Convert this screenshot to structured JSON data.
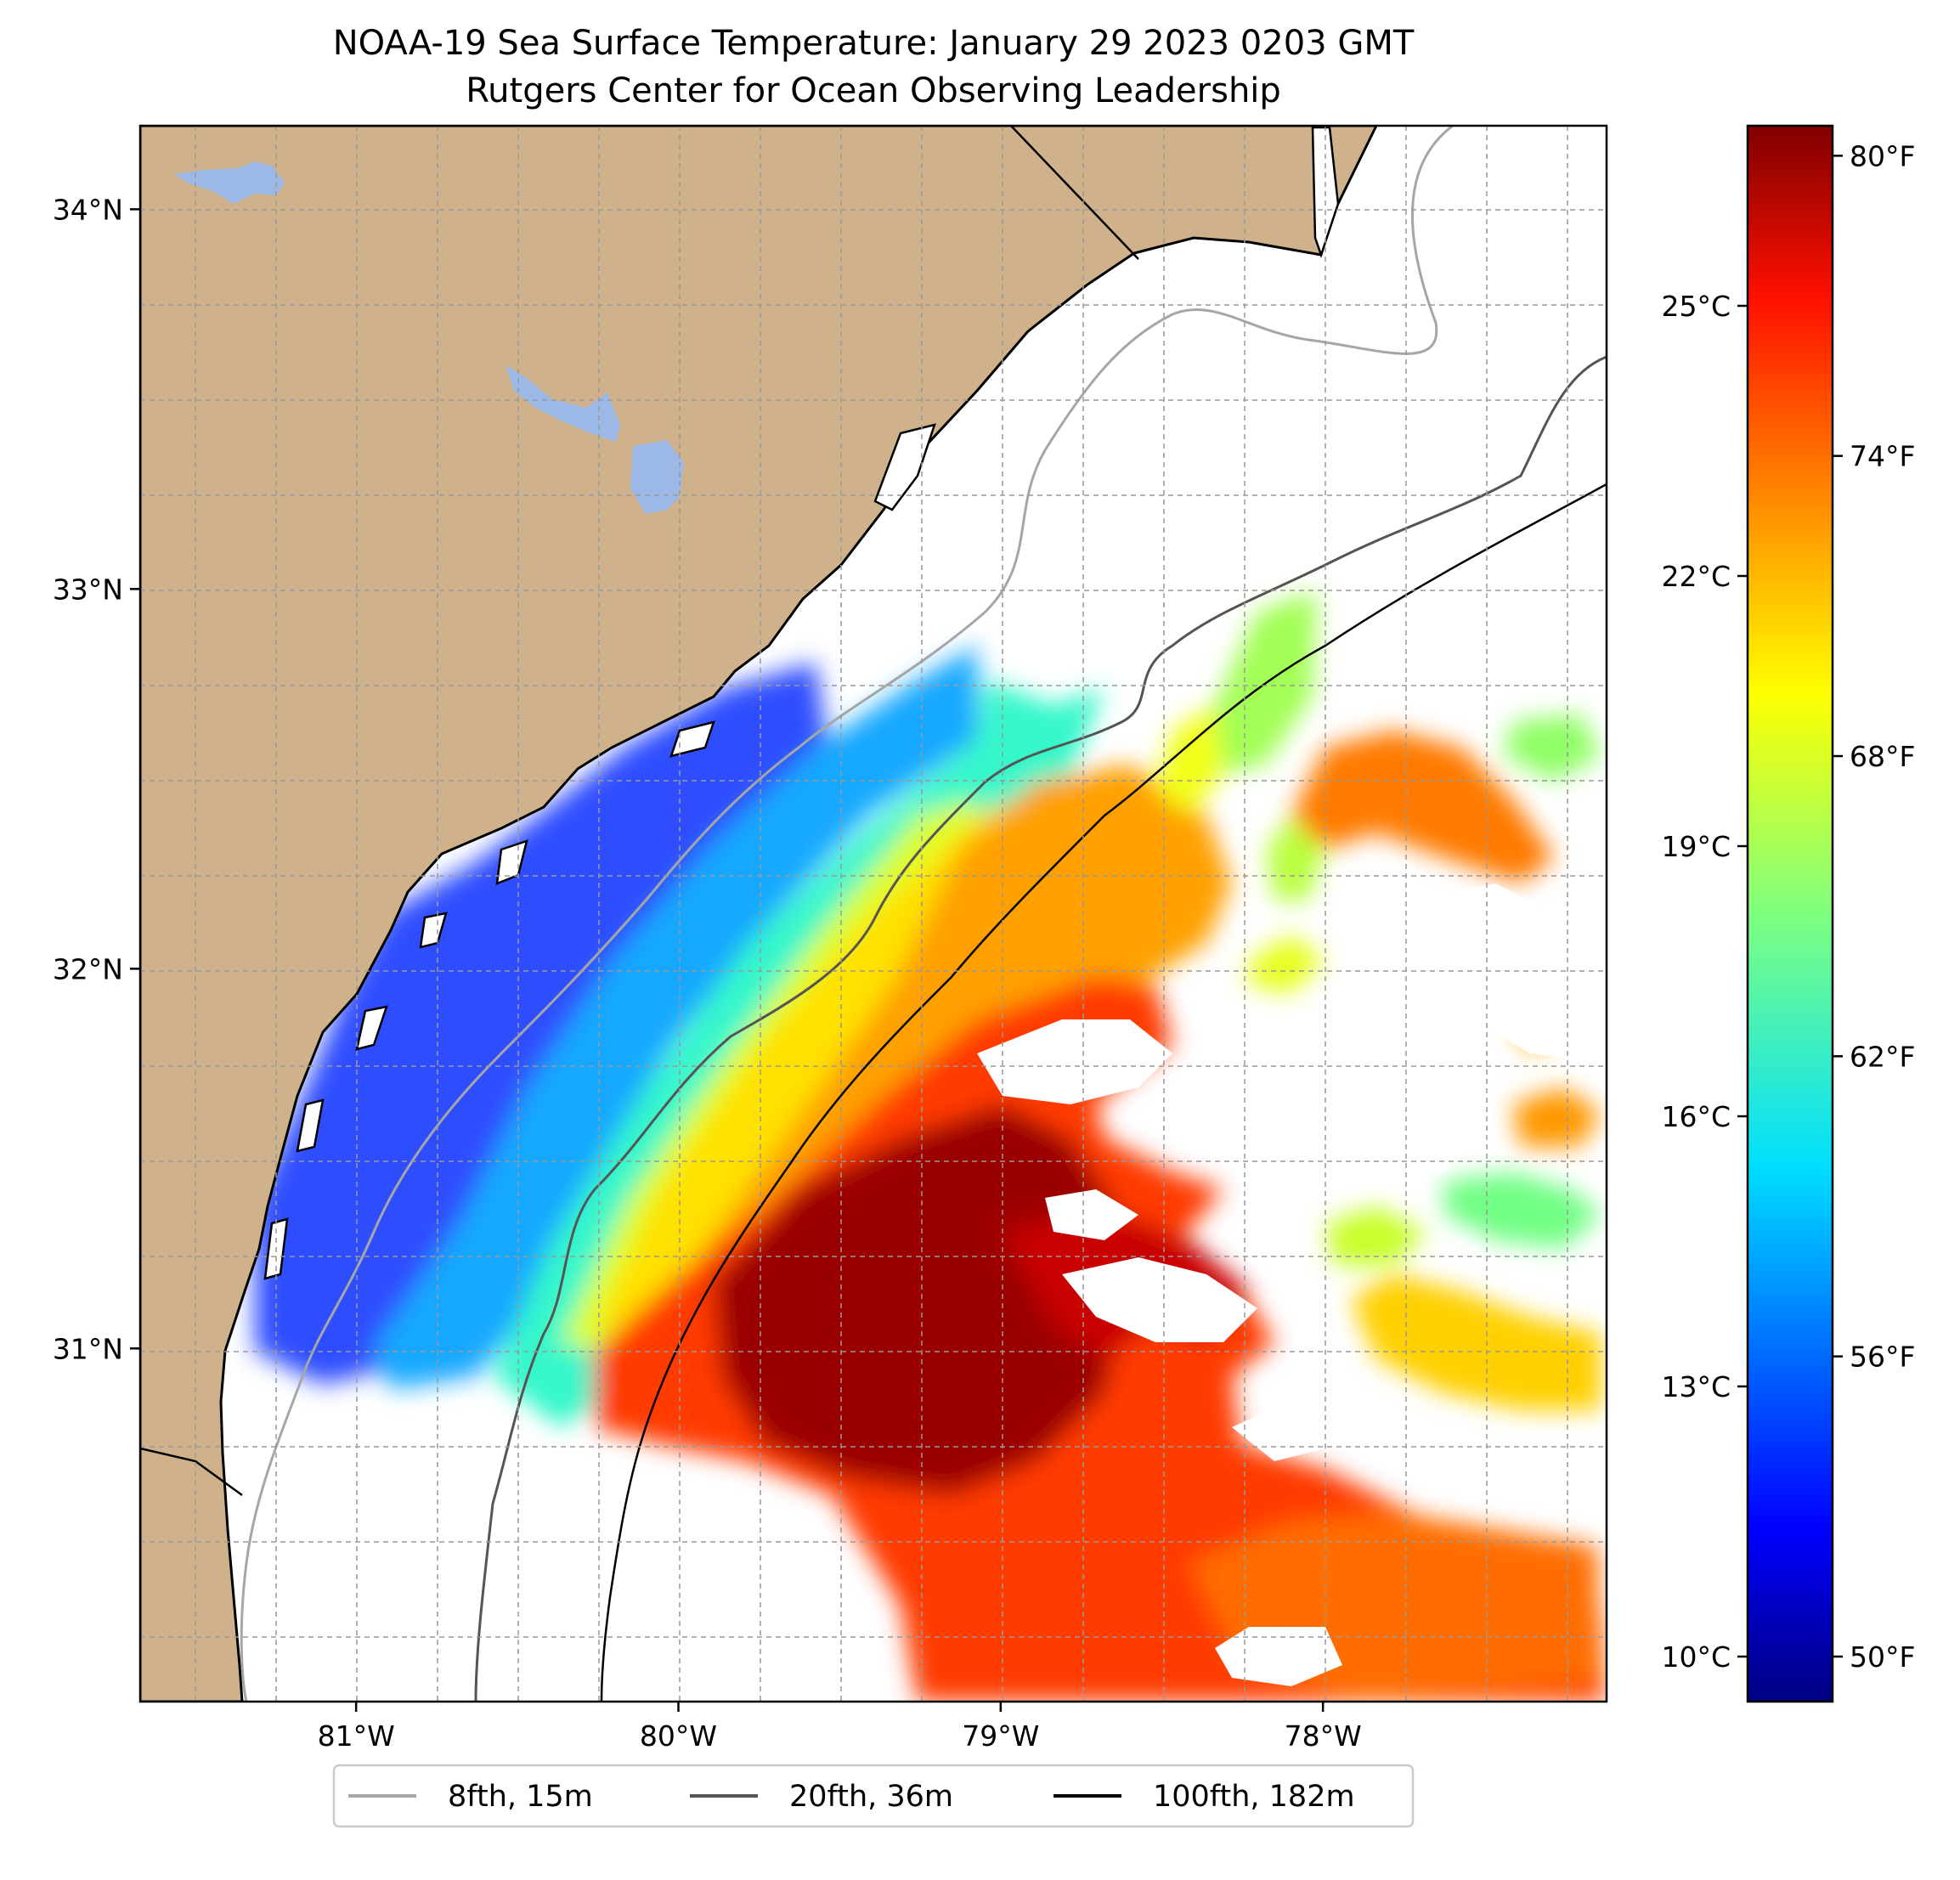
{
  "title": {
    "line1": "NOAA-19 Sea Surface Temperature: January 29 2023 0203 GMT",
    "line2": "Rutgers Center for Ocean Observing Leadership"
  },
  "colors": {
    "land": "#cfb28b",
    "lakes": "#9cb8e6",
    "ocean": "#ffffff",
    "coastline": "#000000",
    "grid": "#999999"
  },
  "axes": {
    "lat_ticks": [
      {
        "value": 34,
        "label": "34°N"
      },
      {
        "value": 33,
        "label": "33°N"
      },
      {
        "value": 32,
        "label": "32°N"
      },
      {
        "value": 31,
        "label": "31°N"
      }
    ],
    "lon_ticks": [
      {
        "value": -81,
        "label": "81°W"
      },
      {
        "value": -80,
        "label": "80°W"
      },
      {
        "value": -79,
        "label": "79°W"
      },
      {
        "value": -78,
        "label": "78°W"
      }
    ],
    "lat_range": [
      30.07,
      34.22
    ],
    "lon_range": [
      -81.67,
      -77.12
    ],
    "grid": true
  },
  "colorbar": {
    "colormap": "jet",
    "celsius_range": [
      9.5,
      27.0
    ],
    "celsius_ticks": [
      {
        "value": 25,
        "label": "25°C"
      },
      {
        "value": 22,
        "label": "22°C"
      },
      {
        "value": 19,
        "label": "19°C"
      },
      {
        "value": 16,
        "label": "16°C"
      },
      {
        "value": 13,
        "label": "13°C"
      },
      {
        "value": 10,
        "label": "10°C"
      }
    ],
    "fahrenheit_ticks": [
      {
        "value": 80,
        "label": "80°F"
      },
      {
        "value": 74,
        "label": "74°F"
      },
      {
        "value": 68,
        "label": "68°F"
      },
      {
        "value": 62,
        "label": "62°F"
      },
      {
        "value": 56,
        "label": "56°F"
      },
      {
        "value": 50,
        "label": "50°F"
      }
    ]
  },
  "legend": {
    "placement": "bottom-center",
    "items": [
      {
        "label": "8fth, 15m",
        "color": "#a6a6a6"
      },
      {
        "label": "20fth, 36m",
        "color": "#555555"
      },
      {
        "label": "100fth, 182m",
        "color": "#000000"
      }
    ]
  }
}
